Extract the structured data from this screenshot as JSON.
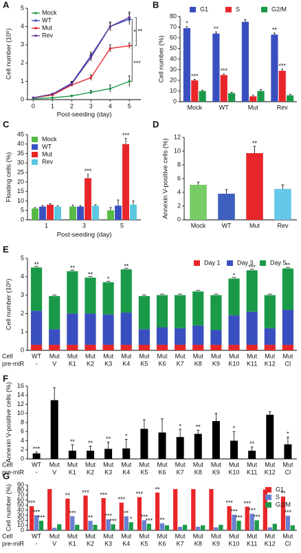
{
  "chart_data": [
    {
      "type": "line",
      "panel": "A",
      "xlabel": "Post-seeding (day)",
      "ylabel": "Cell number (10⁶)",
      "x": [
        0,
        1,
        2,
        3,
        4,
        5
      ],
      "xlim": [
        -0.3,
        5.6
      ],
      "xticks": [
        0,
        1,
        2,
        3,
        4,
        5
      ],
      "ylim": [
        0,
        5
      ],
      "yticks": [
        0,
        1,
        2,
        3,
        4,
        5
      ],
      "legend": "upper left",
      "series": [
        {
          "name": "Mock",
          "color": "#1a9a48",
          "values": [
            0.05,
            0.1,
            0.2,
            0.4,
            0.6,
            1.0
          ],
          "errors": [
            0.02,
            0.03,
            0.05,
            0.1,
            0.2,
            0.3
          ]
        },
        {
          "name": "WT",
          "color": "#3a4fbf",
          "values": [
            0.1,
            0.3,
            0.9,
            2.4,
            4.0,
            4.4
          ],
          "errors": [
            0.03,
            0.05,
            0.1,
            0.2,
            0.25,
            0.3
          ]
        },
        {
          "name": "Mut",
          "color": "#e8262a",
          "values": [
            0.1,
            0.25,
            0.8,
            1.2,
            2.8,
            2.95
          ],
          "errors": [
            0.03,
            0.05,
            0.05,
            0.15,
            0.2,
            0.15
          ]
        },
        {
          "name": "Rev",
          "color": "#6a3a9a",
          "values": [
            0.1,
            0.3,
            0.85,
            2.3,
            4.0,
            4.5
          ],
          "errors": [
            0.03,
            0.05,
            0.1,
            0.2,
            0.2,
            0.3
          ]
        }
      ],
      "brackets": [
        {
          "label": "*",
          "from": "WT",
          "to": "Mut"
        },
        {
          "label": "**",
          "from": "Rev",
          "to": "Mut"
        },
        {
          "label": "***",
          "from": "Mut",
          "to": "Mock"
        }
      ]
    },
    {
      "type": "bar",
      "panel": "B",
      "ylabel": "Cell number (%)",
      "categories": [
        "Mock",
        "WT",
        "Mut",
        "Rev"
      ],
      "ylim": [
        0,
        80
      ],
      "yticks": [
        0,
        10,
        20,
        30,
        40,
        50,
        60,
        70,
        80
      ],
      "legend": "top",
      "series": [
        {
          "name": "G1",
          "color": "#3a4fbf",
          "values": [
            69,
            64,
            75,
            63
          ],
          "errors": [
            1.5,
            1.5,
            2,
            1.5
          ],
          "stars": [
            "*",
            "**",
            null,
            "**"
          ]
        },
        {
          "name": "S",
          "color": "#e8262a",
          "values": [
            20,
            25,
            5,
            29
          ],
          "errors": [
            1,
            1,
            1,
            1.5
          ],
          "stars": [
            "***",
            "***",
            null,
            "***"
          ]
        },
        {
          "name": "G2/M",
          "color": "#1a9a48",
          "values": [
            10,
            8,
            10,
            6
          ],
          "errors": [
            0.8,
            0.8,
            1.5,
            1
          ],
          "stars": [
            null,
            null,
            null,
            null
          ]
        }
      ]
    },
    {
      "type": "bar",
      "panel": "C",
      "xlabel": "Post-seeding (day)",
      "ylabel": "Floating cells (%)",
      "categories": [
        "1",
        "3",
        "5"
      ],
      "ylim": [
        0,
        45
      ],
      "yticks": [
        0,
        5,
        10,
        15,
        20,
        25,
        30,
        35,
        40,
        45
      ],
      "legend": "upper left",
      "series": [
        {
          "name": "Mock",
          "color": "#55bb44",
          "values": [
            6,
            7,
            5
          ],
          "errors": [
            0.5,
            0.8,
            1.5
          ],
          "stars": [
            null,
            null,
            null
          ]
        },
        {
          "name": "WT",
          "color": "#3a4fbf",
          "values": [
            7,
            7,
            7.5
          ],
          "errors": [
            0.6,
            0.5,
            3
          ],
          "stars": [
            null,
            null,
            null
          ]
        },
        {
          "name": "Mut",
          "color": "#e8262a",
          "values": [
            8,
            22,
            40
          ],
          "errors": [
            0.6,
            2,
            3
          ],
          "stars": [
            null,
            "***",
            "***"
          ]
        },
        {
          "name": "Rev",
          "color": "#5bc8e0",
          "values": [
            7,
            7.5,
            8
          ],
          "errors": [
            0.4,
            0.5,
            2
          ],
          "stars": [
            null,
            null,
            null
          ]
        }
      ]
    },
    {
      "type": "bar",
      "panel": "D",
      "ylabel": "Annexin V-positive cells (%)",
      "categories": [
        "Mock",
        "WT",
        "Mut",
        "Rev"
      ],
      "values": [
        5.1,
        3.8,
        9.7,
        4.5
      ],
      "errors": [
        0.4,
        0.6,
        1.0,
        0.6
      ],
      "colors": [
        "#77cc66",
        "#4060c0",
        "#e8262a",
        "#66c8e8"
      ],
      "stars": [
        null,
        null,
        "**",
        null
      ],
      "ylim": [
        0,
        12
      ],
      "yticks": [
        0,
        2,
        4,
        6,
        8,
        10,
        12
      ]
    },
    {
      "type": "bar",
      "panel": "E",
      "stacked": true,
      "ylabel": "Cell number (10⁶)",
      "row_labels": [
        "Cell",
        "pre-miR"
      ],
      "categories": [
        "WT",
        "Mut",
        "Mut",
        "Mut",
        "Mut",
        "Mut",
        "Mut",
        "Mut",
        "Mut",
        "Mut",
        "Mut",
        "Mut",
        "Mut",
        "Mut",
        "Mut"
      ],
      "sub_categories": [
        "-",
        "V",
        "K1",
        "K2",
        "K3",
        "K4",
        "K5",
        "K6",
        "K7",
        "K8",
        "K9",
        "K10",
        "K11",
        "K12",
        "Cl"
      ],
      "ylim": [
        0,
        5
      ],
      "yticks": [
        0,
        1,
        2,
        3,
        4,
        5
      ],
      "legend": "top right",
      "series": [
        {
          "name": "Day 1",
          "color": "#e8262a",
          "values": [
            0.3,
            0.3,
            0.3,
            0.3,
            0.3,
            0.3,
            0.3,
            0.3,
            0.3,
            0.3,
            0.3,
            0.3,
            0.3,
            0.3,
            0.3
          ]
        },
        {
          "name": "Day 3",
          "color": "#3a4fbf",
          "values": [
            1.85,
            0.85,
            1.7,
            1.7,
            1.65,
            1.75,
            0.85,
            0.95,
            0.9,
            1.05,
            0.8,
            1.6,
            1.8,
            0.9,
            1.9
          ]
        },
        {
          "name": "Day 5",
          "color": "#1a9a48",
          "values": [
            2.35,
            1.8,
            2.3,
            1.95,
            1.75,
            2.35,
            1.8,
            1.75,
            1.8,
            1.85,
            1.9,
            2.0,
            2.25,
            1.8,
            2.25
          ]
        }
      ],
      "stars": [
        "**",
        null,
        "**",
        "**",
        "*",
        "**",
        null,
        null,
        null,
        null,
        null,
        "*",
        "***",
        null,
        "**"
      ]
    },
    {
      "type": "bar",
      "panel": "F",
      "ylabel": "Annexin V-positive cells (%)",
      "row_labels": [
        "Cell",
        "pre-miR"
      ],
      "categories": [
        "WT",
        "Mut",
        "Mut",
        "Mut",
        "Mut",
        "Mut",
        "Mut",
        "Mut",
        "Mut",
        "Mut",
        "Mut",
        "Mut",
        "Mut",
        "Mut",
        "Mut"
      ],
      "sub_categories": [
        "-",
        "V",
        "K1",
        "K2",
        "K3",
        "K4",
        "K5",
        "K6",
        "K7",
        "K8",
        "K9",
        "K10",
        "K11",
        "K12",
        "Cl"
      ],
      "values": [
        1.2,
        12.9,
        1.8,
        1.8,
        2.2,
        2.3,
        6.6,
        5.8,
        4.8,
        5.5,
        8.3,
        4.0,
        1.8,
        9.7,
        3.2
      ],
      "errors": [
        0.3,
        2.7,
        1.3,
        1.0,
        1.5,
        2.0,
        2.0,
        3.0,
        1.7,
        0.8,
        1.7,
        2.0,
        0.8,
        0.7,
        1.6
      ],
      "stars": [
        "***",
        null,
        "**",
        "**",
        "**",
        "*",
        null,
        null,
        "*",
        "**",
        null,
        "*",
        "**",
        null,
        "*"
      ],
      "color": "#000000",
      "ylim": [
        0,
        16
      ],
      "yticks": [
        0,
        2,
        4,
        6,
        8,
        10,
        12,
        14,
        16
      ]
    },
    {
      "type": "bar",
      "panel": "G",
      "ylabel": "Cell number (%)",
      "row_labels": [
        "Cell",
        "pre-miR"
      ],
      "categories": [
        "WT",
        "Mut",
        "Mut",
        "Mut",
        "Mut",
        "Mut",
        "Mut",
        "Mut",
        "Mut",
        "Mut",
        "Mut",
        "Mut",
        "Mut",
        "Mut",
        "Mut"
      ],
      "sub_categories": [
        "-",
        "V",
        "K1",
        "K2",
        "K3",
        "K4",
        "K5",
        "K6",
        "K7",
        "K8",
        "K9",
        "K10",
        "K11",
        "K12",
        "Cl"
      ],
      "ylim": [
        0,
        90
      ],
      "yticks": [
        0,
        10,
        20,
        30,
        40,
        50,
        60,
        70,
        80,
        90
      ],
      "legend": "upper right",
      "series": [
        {
          "name": "G1",
          "color": "#e8262a",
          "values": [
            48,
            82,
            63,
            69,
            64,
            55,
            66,
            75,
            82,
            82,
            82,
            48,
            47,
            81,
            67
          ],
          "stars": [
            "***",
            null,
            "**",
            "***",
            "***",
            "***",
            "***",
            "**",
            null,
            null,
            null,
            "***",
            "***",
            null,
            "**"
          ]
        },
        {
          "name": "S",
          "color": "#6a7fd0",
          "values": [
            30,
            5,
            28,
            19,
            22,
            28,
            20,
            14,
            7,
            7,
            6,
            31,
            33,
            6,
            29
          ],
          "stars": [
            "***",
            null,
            "***",
            "**",
            "***",
            "**",
            "***",
            "**",
            null,
            null,
            null,
            "***",
            "***",
            null,
            "***"
          ]
        },
        {
          "name": "G2/M",
          "color": "#1a9a48",
          "values": [
            19,
            12,
            11,
            11,
            12,
            16,
            13,
            10,
            11,
            10,
            11,
            19,
            20,
            13,
            10
          ],
          "stars": [
            "***",
            null,
            null,
            null,
            "***",
            "*",
            "***",
            null,
            null,
            null,
            null,
            "***",
            "***",
            null,
            null
          ]
        }
      ]
    }
  ]
}
